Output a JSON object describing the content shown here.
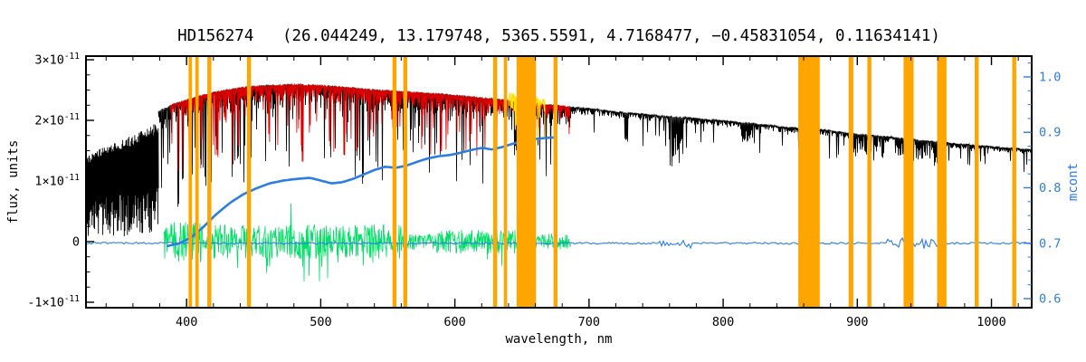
{
  "chart_data": {
    "type": "line",
    "title": "HD156274   (26.044249, 13.179748, 5365.5591, 4.7168477, −0.45831054, 0.11634141)",
    "xlabel": "wavelength, nm",
    "ylabel_left": "flux, units",
    "ylabel_right": "mcont",
    "x_range": [
      325,
      1030
    ],
    "x_ticks": [
      400,
      500,
      600,
      700,
      800,
      900,
      1000
    ],
    "x_minor_step": 20,
    "y_left_unit": 1e-11,
    "y_left_range_units": [
      -1.09,
      3.06
    ],
    "y_left_ticks": [
      {
        "v": -1,
        "base": "-1×10",
        "exp": "-11"
      },
      {
        "v": 0,
        "base": "0",
        "exp": ""
      },
      {
        "v": 1,
        "base": "1×10",
        "exp": "-11"
      },
      {
        "v": 2,
        "base": "2×10",
        "exp": "-11"
      },
      {
        "v": 3,
        "base": "3×10",
        "exp": "-11"
      }
    ],
    "y_left_minor_step": 0.25,
    "y_right_range": [
      0.5837,
      1.0375
    ],
    "y_right_ticks": [
      {
        "v": 0.6,
        "label": "0.6"
      },
      {
        "v": 0.7,
        "label": "0.7"
      },
      {
        "v": 0.8,
        "label": "0.8"
      },
      {
        "v": 0.9,
        "label": "0.9"
      },
      {
        "v": 1.0,
        "label": "1.0"
      }
    ],
    "y_right_minor_step": 0.025,
    "legend": "none",
    "grid": false,
    "colors": {
      "observed": "#000000",
      "model": "#dd0000",
      "highlight": "#ffdf00",
      "residual": "#00df66",
      "continuum": "#2d7de0",
      "mask": "#ffa500",
      "axis": "#000000",
      "background": "#ffffff"
    },
    "masked_regions": [
      [
        401.5,
        404
      ],
      [
        406.5,
        409
      ],
      [
        415.5,
        418.5
      ],
      [
        445,
        448
      ],
      [
        553.5,
        556.5
      ],
      [
        561.5,
        564.5
      ],
      [
        628.5,
        631.5
      ],
      [
        636.5,
        639
      ],
      [
        646,
        660.5
      ],
      [
        673.5,
        676.5
      ],
      [
        856,
        872
      ],
      [
        893.5,
        897
      ],
      [
        907.5,
        910.5
      ],
      [
        934.5,
        942
      ],
      [
        959.5,
        966.5
      ],
      [
        987.5,
        990.5
      ],
      [
        1015.5,
        1018.5
      ]
    ],
    "series": {
      "observed_uv_block": {
        "x_range": [
          325,
          379
        ],
        "envelope": [
          [
            325,
            1.4
          ],
          [
            335,
            1.53
          ],
          [
            345,
            1.63
          ],
          [
            355,
            1.71
          ],
          [
            365,
            1.81
          ],
          [
            372,
            1.89
          ],
          [
            379,
            1.98
          ]
        ]
      },
      "observed": {
        "x_range": [
          379,
          1030
        ],
        "fit_end": 686,
        "envelope": [
          [
            379,
            2.16
          ],
          [
            390,
            2.28
          ],
          [
            400,
            2.35
          ],
          [
            415,
            2.45
          ],
          [
            430,
            2.52
          ],
          [
            445,
            2.57
          ],
          [
            460,
            2.59
          ],
          [
            480,
            2.61
          ],
          [
            500,
            2.59
          ],
          [
            520,
            2.56
          ],
          [
            540,
            2.52
          ],
          [
            560,
            2.49
          ],
          [
            575,
            2.47
          ],
          [
            590,
            2.45
          ],
          [
            605,
            2.42
          ],
          [
            620,
            2.39
          ],
          [
            640,
            2.34
          ],
          [
            660,
            2.29
          ],
          [
            680,
            2.25
          ],
          [
            700,
            2.21
          ],
          [
            720,
            2.16
          ],
          [
            740,
            2.12
          ],
          [
            760,
            2.08
          ],
          [
            780,
            2.05
          ],
          [
            800,
            2.01
          ],
          [
            820,
            1.97
          ],
          [
            840,
            1.92
          ],
          [
            855,
            1.89
          ],
          [
            875,
            1.86
          ],
          [
            900,
            1.79
          ],
          [
            925,
            1.74
          ],
          [
            950,
            1.68
          ],
          [
            975,
            1.63
          ],
          [
            1000,
            1.58
          ],
          [
            1030,
            1.53
          ]
        ],
        "deep_lines": [
          [
            393.4,
            0.78
          ],
          [
            396.8,
            0.74
          ],
          [
            410.2,
            0.62
          ],
          [
            422.7,
            0.5
          ],
          [
            434.0,
            0.62
          ],
          [
            438.3,
            0.45
          ],
          [
            486.1,
            0.58
          ],
          [
            517.3,
            0.52
          ],
          [
            527.0,
            0.48
          ],
          [
            589.3,
            0.46
          ],
          [
            656.3,
            0.52
          ]
        ],
        "telluric_bands": [
          [
            759,
            770,
            0.42
          ],
          [
            813,
            823,
            0.18
          ],
          [
            895,
            920,
            0.2
          ],
          [
            928,
            960,
            0.22
          ]
        ]
      },
      "model": {
        "x_range": [
          388,
          686
        ]
      },
      "highlight": {
        "x_range": [
          640,
          667
        ],
        "lift": 0.12
      },
      "residual": {
        "x_range": [
          383,
          686
        ],
        "base_amplitude": 0.13,
        "strong_regions": [
          [
            383,
            412,
            0.34
          ],
          [
            420,
            560,
            0.28
          ],
          [
            585,
            645,
            0.2
          ]
        ]
      },
      "continuum_fit": {
        "points": [
          [
            386,
            0.695
          ],
          [
            395,
            0.7
          ],
          [
            403,
            0.71
          ],
          [
            412,
            0.728
          ],
          [
            422,
            0.752
          ],
          [
            432,
            0.772
          ],
          [
            442,
            0.788
          ],
          [
            452,
            0.799
          ],
          [
            462,
            0.808
          ],
          [
            472,
            0.813
          ],
          [
            482,
            0.816
          ],
          [
            492,
            0.818
          ],
          [
            500,
            0.813
          ],
          [
            508,
            0.808
          ],
          [
            516,
            0.81
          ],
          [
            524,
            0.816
          ],
          [
            532,
            0.824
          ],
          [
            540,
            0.832
          ],
          [
            548,
            0.838
          ],
          [
            556,
            0.836
          ],
          [
            564,
            0.84
          ],
          [
            572,
            0.847
          ],
          [
            580,
            0.853
          ],
          [
            588,
            0.857
          ],
          [
            596,
            0.859
          ],
          [
            604,
            0.863
          ],
          [
            612,
            0.868
          ],
          [
            620,
            0.872
          ],
          [
            628,
            0.869
          ],
          [
            636,
            0.874
          ],
          [
            644,
            0.88
          ],
          [
            652,
            0.885
          ],
          [
            660,
            0.888
          ],
          [
            668,
            0.89
          ],
          [
            676,
            0.891
          ]
        ]
      },
      "baseline": {
        "value": 0.7,
        "x_range": [
          325,
          1030
        ],
        "base_noise": 0.0018,
        "wiggle_regions": [
          [
            752,
            776,
            0.011
          ],
          [
            922,
            962,
            0.012
          ]
        ]
      }
    }
  }
}
